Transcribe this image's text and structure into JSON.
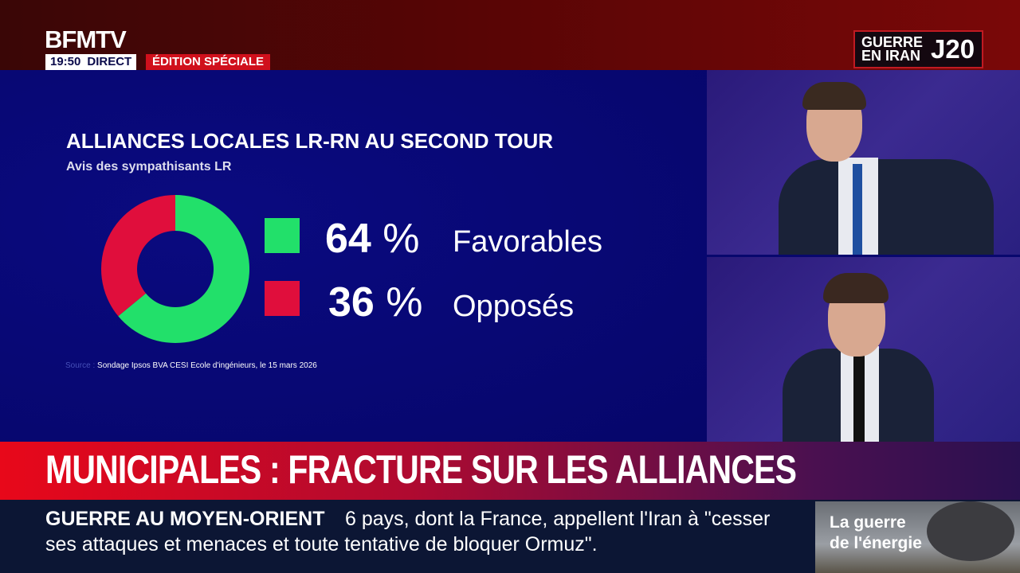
{
  "header": {
    "logo": "BFMTV",
    "time": "19:50",
    "live": "DIRECT",
    "edition": "ÉDITION SPÉCIALE"
  },
  "badge": {
    "line1": "GUERRE",
    "line2": "EN IRAN",
    "day": "J20"
  },
  "chart_data": {
    "type": "pie",
    "title": "ALLIANCES LOCALES LR-RN AU SECOND TOUR",
    "subtitle": "Avis des sympathisants LR",
    "categories": [
      "Favorables",
      "Opposés"
    ],
    "values": [
      64,
      36
    ],
    "value_labels": [
      "64",
      "36"
    ],
    "unit": "%",
    "colors": [
      "#22e06a",
      "#e00e3c"
    ],
    "donut": true,
    "source_label": "Source :",
    "source": "Sondage Ipsos BVA CESI Ecole d'ingénieurs, le 15 mars 2026"
  },
  "headline": "MUNICIPALES : FRACTURE SUR LES ALLIANCES",
  "ticker": {
    "category": "GUERRE AU MOYEN-ORIENT",
    "line1": "6 pays, dont la France, appellent l'Iran à \"cesser",
    "line2": "ses attaques et menaces et toute tentative de bloquer Ormuz\"."
  },
  "promo": {
    "line1": "La guerre",
    "line2": "de l'énergie"
  }
}
